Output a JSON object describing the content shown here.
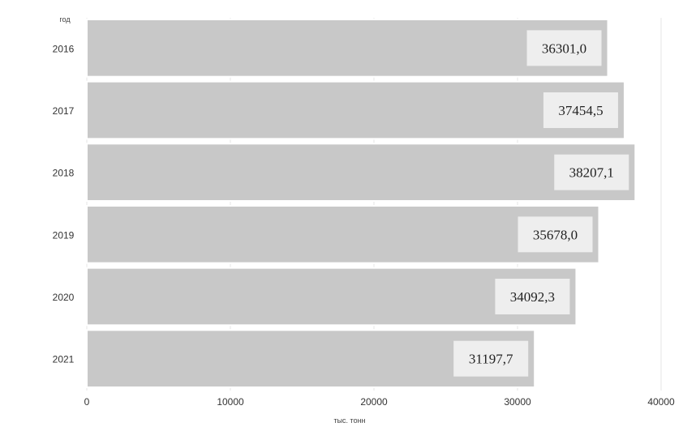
{
  "chart_data": {
    "type": "bar",
    "orientation": "horizontal",
    "categories": [
      "2016",
      "2017",
      "2018",
      "2019",
      "2020",
      "2021"
    ],
    "values": [
      36301.0,
      37454.5,
      38207.1,
      35678.0,
      34092.3,
      31197.7
    ],
    "data_labels": [
      "36301,0",
      "37454,5",
      "38207,1",
      "35678,0",
      "34092,3",
      "31197,7"
    ],
    "xlabel": "тыс. тонн",
    "ylabel": "год",
    "xlim": [
      0,
      40000
    ],
    "x_ticks": [
      0,
      10000,
      20000,
      30000,
      40000
    ],
    "x_tick_labels": [
      "0",
      "10000",
      "20000",
      "30000",
      "40000"
    ],
    "grid": true,
    "colors": {
      "bar": "#c8c8c8",
      "label_box": "#eeeeee"
    }
  }
}
